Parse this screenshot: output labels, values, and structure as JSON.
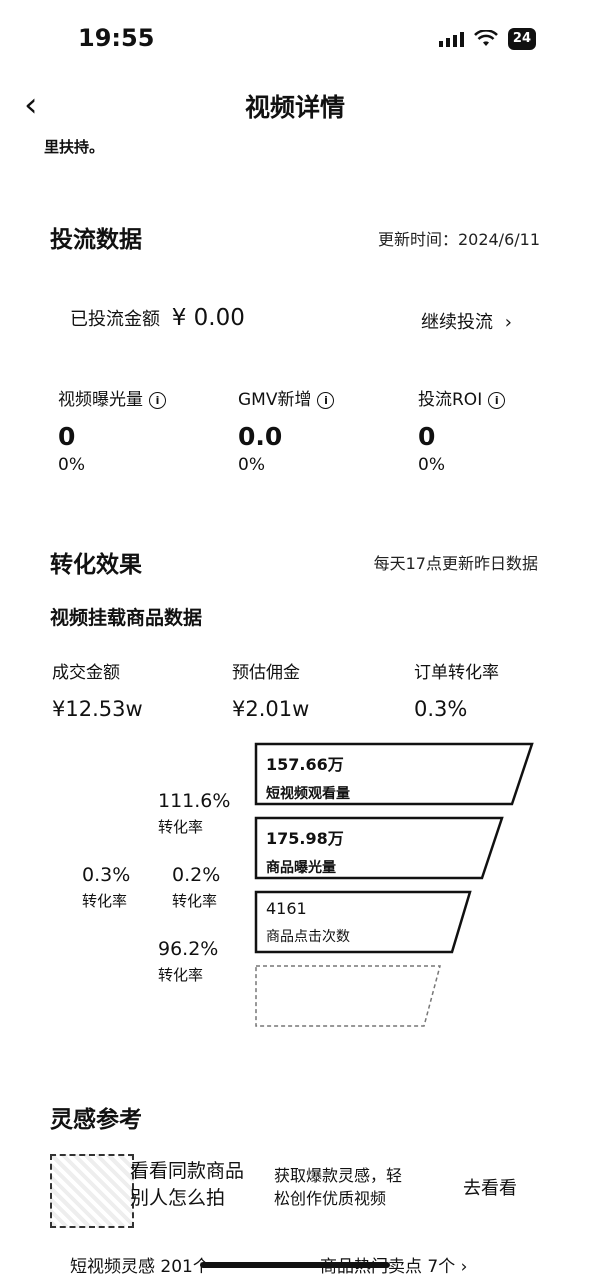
{
  "status": {
    "time": "19:55",
    "battery": "24"
  },
  "nav": {
    "title": "视频详情",
    "back": "‹"
  },
  "cutoff_text": "里扶持。",
  "traffic": {
    "title": "投流数据",
    "updated": "更新时间：2024/6/11",
    "spent_label": "已投流金额",
    "spent_value": "¥ 0.00",
    "continue": "继续投流",
    "metrics": [
      {
        "label": "视频曝光量",
        "value": "0",
        "pct": "0%"
      },
      {
        "label": "GMV新增",
        "value": "0.0",
        "pct": "0%"
      },
      {
        "label": "投流ROI",
        "value": "0",
        "pct": "0%"
      }
    ]
  },
  "conversion": {
    "title": "转化效果",
    "note": "每天17点更新昨日数据",
    "subtitle": "视频挂载商品数据",
    "stats": [
      {
        "label": "成交金额",
        "value": "¥12.53w"
      },
      {
        "label": "预估佣金",
        "value": "¥2.01w"
      },
      {
        "label": "订单转化率",
        "value": "0.3%"
      }
    ],
    "funnel": [
      {
        "value": "157.66万",
        "label": "短视频观看量"
      },
      {
        "value": "175.98万",
        "label": "商品曝光量"
      },
      {
        "value": "4161",
        "label": "商品点击次数"
      },
      {
        "value": "",
        "label": ""
      }
    ],
    "rates": [
      {
        "value": "111.6%",
        "label": "转化率"
      },
      {
        "value": "0.3%",
        "label": "转化率"
      },
      {
        "value": "0.2%",
        "label": "转化率"
      },
      {
        "value": "96.2%",
        "label": "转化率"
      }
    ]
  },
  "inspiration": {
    "title": "灵感参考",
    "card_line1": "看看同款商品",
    "card_line2": "别人怎么拍",
    "desc_line1": "获取爆款灵感，轻",
    "desc_line2": "松创作优质视频",
    "action": "去看看"
  },
  "bottom_tabs": {
    "left": "短视频灵感 201个",
    "right": "商品热门卖点 7个 ›"
  }
}
